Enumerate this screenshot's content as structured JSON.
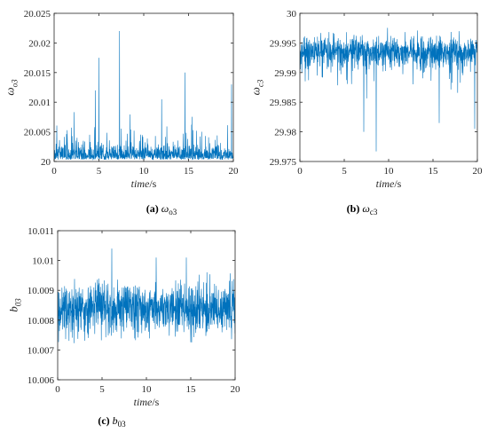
{
  "chart_data": [
    {
      "type": "line",
      "xlabel": "time/s",
      "ylabel": "ω o3",
      "caption": "(a) ωo3",
      "xlim": [
        0,
        20
      ],
      "ylim": [
        20,
        20.025
      ],
      "xticks": [
        "0",
        "5",
        "10",
        "15",
        "20"
      ],
      "yticks": [
        "20",
        "20.005",
        "20.01",
        "20.015",
        "20.02",
        "20.025"
      ],
      "grid": false,
      "color": "#0072BD",
      "summary": {
        "baseline": 20.0015,
        "min": 20.0,
        "max": 20.022
      },
      "spikes": [
        [
          4.6,
          20.012
        ],
        [
          5.0,
          20.0175
        ],
        [
          7.3,
          20.022
        ],
        [
          12.0,
          20.0105
        ],
        [
          14.6,
          20.015
        ],
        [
          19.8,
          20.013
        ]
      ]
    },
    {
      "type": "line",
      "xlabel": "time/s",
      "ylabel": "ω c3",
      "caption": "(b) ωc3",
      "xlim": [
        0,
        20
      ],
      "ylim": [
        29.975,
        30
      ],
      "xticks": [
        "0",
        "5",
        "10",
        "15",
        "20"
      ],
      "yticks": [
        "29.975",
        "29.98",
        "29.985",
        "29.99",
        "29.995",
        "30"
      ],
      "grid": false,
      "color": "#0072BD",
      "summary": {
        "baseline": 29.9935,
        "min": 29.9767,
        "max": 29.9985
      },
      "dips": [
        [
          7.2,
          29.98
        ],
        [
          8.6,
          29.9767
        ],
        [
          15.7,
          29.9815
        ],
        [
          19.7,
          29.9805
        ]
      ]
    },
    {
      "type": "line",
      "xlabel": "time/s",
      "ylabel": "b 03",
      "caption": "(c) b03",
      "xlim": [
        0,
        20
      ],
      "ylim": [
        10.006,
        10.011
      ],
      "xticks": [
        "0",
        "5",
        "10",
        "15",
        "20"
      ],
      "yticks": [
        "10.006",
        "10.007",
        "10.008",
        "10.009",
        "10.01",
        "10.011"
      ],
      "grid": false,
      "color": "#0072BD",
      "summary": {
        "baseline": 10.0084,
        "min": 10.0067,
        "max": 10.0104
      },
      "peaks": [
        [
          6.1,
          10.0104
        ],
        [
          11.1,
          10.0101
        ],
        [
          14.5,
          10.0101
        ]
      ]
    }
  ]
}
